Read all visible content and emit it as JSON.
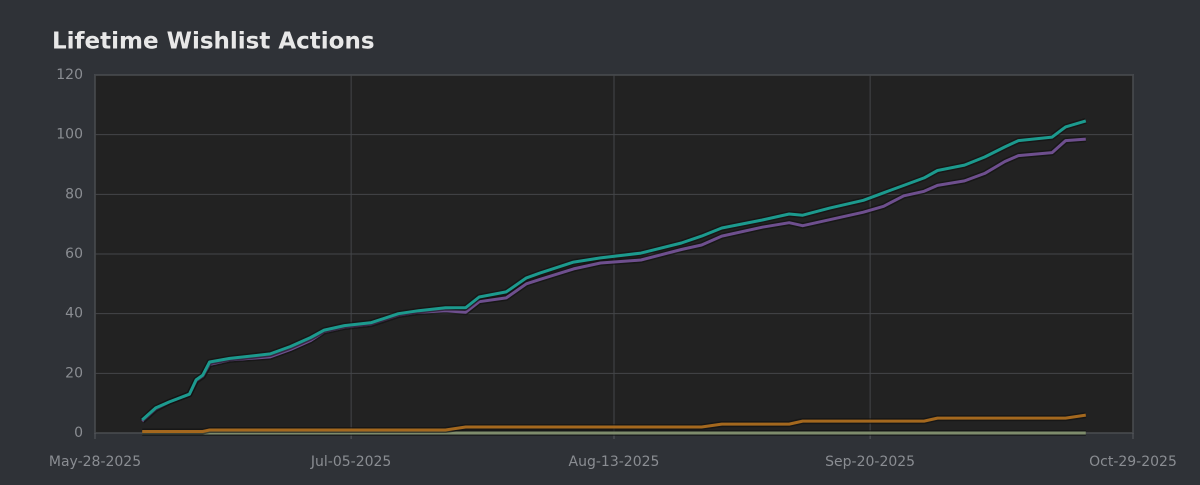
{
  "chart_data": {
    "type": "line",
    "title": "Lifetime Wishlist Actions",
    "x": [
      "2025-06-04",
      "2025-06-06",
      "2025-06-08",
      "2025-06-11",
      "2025-06-12",
      "2025-06-13",
      "2025-06-14",
      "2025-06-17",
      "2025-06-23",
      "2025-06-26",
      "2025-06-29",
      "2025-07-01",
      "2025-07-04",
      "2025-07-08",
      "2025-07-12",
      "2025-07-15",
      "2025-07-19",
      "2025-07-22",
      "2025-07-24",
      "2025-07-28",
      "2025-07-31",
      "2025-08-02",
      "2025-08-07",
      "2025-08-11",
      "2025-08-17",
      "2025-08-23",
      "2025-08-26",
      "2025-08-29",
      "2025-09-04",
      "2025-09-08",
      "2025-09-10",
      "2025-09-14",
      "2025-09-19",
      "2025-09-22",
      "2025-09-25",
      "2025-09-28",
      "2025-09-30",
      "2025-10-04",
      "2025-10-07",
      "2025-10-10",
      "2025-10-12",
      "2025-10-17",
      "2025-10-19",
      "2025-10-22"
    ],
    "series": [
      {
        "color": "#1c9a8e",
        "values": [
          4.4,
          8.4,
          10.4,
          13,
          17.8,
          19.4,
          23.8,
          25,
          26.5,
          29,
          32,
          34.5,
          36,
          37,
          40,
          41,
          42,
          42,
          45.6,
          47.3,
          52,
          53.6,
          57.3,
          58.7,
          60.3,
          63.7,
          66,
          68.7,
          71.4,
          73.4,
          73,
          75.4,
          78,
          80.5,
          83,
          85.5,
          88,
          89.8,
          92.5,
          95.9,
          98,
          99.2,
          102.6,
          104.6
        ]
      },
      {
        "color": "#6e4f8e",
        "values": [
          4,
          8,
          10.4,
          13,
          17.5,
          19,
          23,
          24.5,
          25.5,
          28,
          31,
          34,
          35.5,
          36.5,
          39.5,
          40.5,
          41,
          40.5,
          44,
          45.3,
          50,
          51.5,
          55,
          57,
          58,
          61.5,
          63,
          66,
          69,
          70.5,
          69.5,
          71.5,
          74,
          76,
          79.5,
          81,
          83,
          84.5,
          87,
          91,
          93,
          94,
          98,
          98.5
        ]
      },
      {
        "color": "#a4681e",
        "values": [
          0.5,
          0.5,
          0.5,
          0.5,
          0.5,
          0.5,
          1,
          1,
          1,
          1,
          1,
          1,
          1,
          1,
          1,
          1,
          1,
          2,
          2,
          2,
          2,
          2,
          2,
          2,
          2,
          2,
          2,
          3,
          3,
          3,
          4,
          4,
          4,
          4,
          4,
          4,
          5,
          5,
          5,
          5,
          5,
          5,
          5,
          6
        ]
      },
      {
        "color": "#7e8c6c",
        "values": [
          0,
          0,
          0,
          0,
          0,
          0,
          0,
          0,
          0,
          0,
          0,
          0,
          0,
          0,
          0,
          0,
          0,
          0,
          0,
          0,
          0,
          0,
          0,
          0,
          0,
          0,
          0,
          0,
          0,
          0,
          0,
          0,
          0,
          0,
          0,
          0,
          0,
          0,
          0,
          0,
          0,
          0,
          0,
          0
        ]
      }
    ],
    "xlim": [
      "2025-05-28",
      "2025-10-29"
    ],
    "xticks": [
      {
        "value": "2025-05-28",
        "label": "May-28-2025"
      },
      {
        "value": "2025-07-05",
        "label": "Jul-05-2025"
      },
      {
        "value": "2025-08-13",
        "label": "Aug-13-2025"
      },
      {
        "value": "2025-09-20",
        "label": "Sep-20-2025"
      },
      {
        "value": "2025-10-29",
        "label": "Oct-29-2025"
      }
    ],
    "ylim": [
      0,
      120
    ],
    "yticks": [
      0,
      20,
      40,
      60,
      80,
      100,
      120
    ],
    "grid": true
  }
}
